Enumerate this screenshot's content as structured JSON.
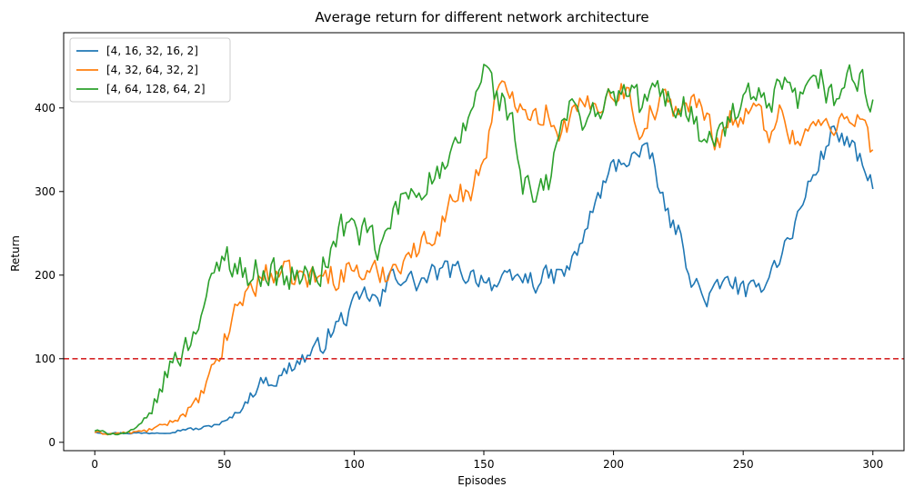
{
  "chart_data": {
    "type": "line",
    "title": "Average return for different network architecture",
    "xlabel": "Episodes",
    "ylabel": "Return",
    "xlim": [
      -12,
      312
    ],
    "ylim": [
      -10,
      490
    ],
    "xticks": [
      0,
      50,
      100,
      150,
      200,
      250,
      300
    ],
    "yticks": [
      0,
      100,
      200,
      300,
      400
    ],
    "grid": false,
    "legend_position": "top-left",
    "reference_line": {
      "y": 100,
      "color": "#d62728",
      "style": "dashed"
    },
    "series": [
      {
        "name": "[4, 16, 32, 16, 2]",
        "color": "#1f77b4",
        "anchors": [
          [
            0,
            13
          ],
          [
            3,
            11
          ],
          [
            10,
            11
          ],
          [
            20,
            11
          ],
          [
            30,
            12
          ],
          [
            35,
            16
          ],
          [
            40,
            16
          ],
          [
            45,
            20
          ],
          [
            50,
            24
          ],
          [
            55,
            35
          ],
          [
            60,
            55
          ],
          [
            65,
            75
          ],
          [
            70,
            72
          ],
          [
            75,
            90
          ],
          [
            80,
            100
          ],
          [
            85,
            108
          ],
          [
            90,
            128
          ],
          [
            95,
            145
          ],
          [
            100,
            162
          ],
          [
            105,
            178
          ],
          [
            110,
            165
          ],
          [
            115,
            205
          ],
          [
            120,
            195
          ],
          [
            125,
            190
          ],
          [
            130,
            200
          ],
          [
            135,
            205
          ],
          [
            140,
            205
          ],
          [
            145,
            200
          ],
          [
            150,
            198
          ],
          [
            155,
            188
          ],
          [
            160,
            192
          ],
          [
            165,
            198
          ],
          [
            170,
            192
          ],
          [
            175,
            198
          ],
          [
            180,
            200
          ],
          [
            185,
            218
          ],
          [
            190,
            260
          ],
          [
            195,
            300
          ],
          [
            200,
            330
          ],
          [
            205,
            340
          ],
          [
            210,
            345
          ],
          [
            215,
            340
          ],
          [
            220,
            275
          ],
          [
            225,
            250
          ],
          [
            230,
            200
          ],
          [
            235,
            170
          ],
          [
            240,
            182
          ],
          [
            245,
            195
          ],
          [
            250,
            180
          ],
          [
            255,
            178
          ],
          [
            260,
            205
          ],
          [
            265,
            228
          ],
          [
            270,
            260
          ],
          [
            275,
            305
          ],
          [
            280,
            340
          ],
          [
            285,
            375
          ],
          [
            290,
            360
          ],
          [
            295,
            335
          ],
          [
            300,
            303
          ]
        ],
        "amplitude": 16
      },
      {
        "name": "[4, 32, 64, 32, 2]",
        "color": "#ff7f0e",
        "anchors": [
          [
            0,
            12
          ],
          [
            5,
            10
          ],
          [
            15,
            12
          ],
          [
            20,
            14
          ],
          [
            25,
            19
          ],
          [
            30,
            25
          ],
          [
            35,
            35
          ],
          [
            40,
            50
          ],
          [
            45,
            82
          ],
          [
            50,
            118
          ],
          [
            55,
            165
          ],
          [
            60,
            185
          ],
          [
            65,
            198
          ],
          [
            70,
            205
          ],
          [
            75,
            198
          ],
          [
            80,
            198
          ],
          [
            85,
            196
          ],
          [
            90,
            200
          ],
          [
            95,
            200
          ],
          [
            100,
            210
          ],
          [
            105,
            198
          ],
          [
            110,
            202
          ],
          [
            115,
            210
          ],
          [
            120,
            225
          ],
          [
            125,
            230
          ],
          [
            130,
            250
          ],
          [
            135,
            270
          ],
          [
            140,
            300
          ],
          [
            145,
            300
          ],
          [
            150,
            340
          ],
          [
            155,
            415
          ],
          [
            160,
            418
          ],
          [
            165,
            410
          ],
          [
            170,
            390
          ],
          [
            175,
            395
          ],
          [
            180,
            372
          ],
          [
            185,
            395
          ],
          [
            190,
            400
          ],
          [
            195,
            410
          ],
          [
            200,
            420
          ],
          [
            205,
            422
          ],
          [
            210,
            375
          ],
          [
            215,
            398
          ],
          [
            220,
            408
          ],
          [
            225,
            400
          ],
          [
            230,
            405
          ],
          [
            235,
            395
          ],
          [
            240,
            360
          ],
          [
            245,
            390
          ],
          [
            250,
            385
          ],
          [
            255,
            398
          ],
          [
            260,
            375
          ],
          [
            265,
            395
          ],
          [
            270,
            360
          ],
          [
            275,
            375
          ],
          [
            280,
            380
          ],
          [
            285,
            370
          ],
          [
            290,
            400
          ],
          [
            295,
            388
          ],
          [
            300,
            350
          ]
        ],
        "amplitude": 20
      },
      {
        "name": "[4, 64, 128, 64, 2]",
        "color": "#2ca02c",
        "anchors": [
          [
            0,
            14
          ],
          [
            5,
            11
          ],
          [
            10,
            10
          ],
          [
            15,
            14
          ],
          [
            20,
            28
          ],
          [
            25,
            58
          ],
          [
            30,
            100
          ],
          [
            35,
            112
          ],
          [
            40,
            150
          ],
          [
            45,
            185
          ],
          [
            50,
            228
          ],
          [
            55,
            212
          ],
          [
            60,
            198
          ],
          [
            65,
            208
          ],
          [
            70,
            200
          ],
          [
            75,
            195
          ],
          [
            80,
            200
          ],
          [
            85,
            195
          ],
          [
            90,
            220
          ],
          [
            95,
            258
          ],
          [
            100,
            255
          ],
          [
            105,
            248
          ],
          [
            110,
            225
          ],
          [
            115,
            272
          ],
          [
            120,
            295
          ],
          [
            125,
            305
          ],
          [
            130,
            318
          ],
          [
            135,
            320
          ],
          [
            140,
            352
          ],
          [
            145,
            395
          ],
          [
            150,
            448
          ],
          [
            155,
            415
          ],
          [
            160,
            395
          ],
          [
            165,
            310
          ],
          [
            170,
            288
          ],
          [
            175,
            310
          ],
          [
            180,
            382
          ],
          [
            185,
            400
          ],
          [
            190,
            388
          ],
          [
            195,
            402
          ],
          [
            200,
            410
          ],
          [
            205,
            420
          ],
          [
            210,
            405
          ],
          [
            215,
            420
          ],
          [
            220,
            410
          ],
          [
            225,
            405
          ],
          [
            230,
            400
          ],
          [
            235,
            352
          ],
          [
            240,
            368
          ],
          [
            245,
            382
          ],
          [
            250,
            408
          ],
          [
            255,
            410
          ],
          [
            260,
            395
          ],
          [
            265,
            425
          ],
          [
            270,
            408
          ],
          [
            275,
            412
          ],
          [
            280,
            435
          ],
          [
            285,
            405
          ],
          [
            290,
            440
          ],
          [
            295,
            430
          ],
          [
            300,
            410
          ]
        ],
        "amplitude": 24
      }
    ]
  }
}
